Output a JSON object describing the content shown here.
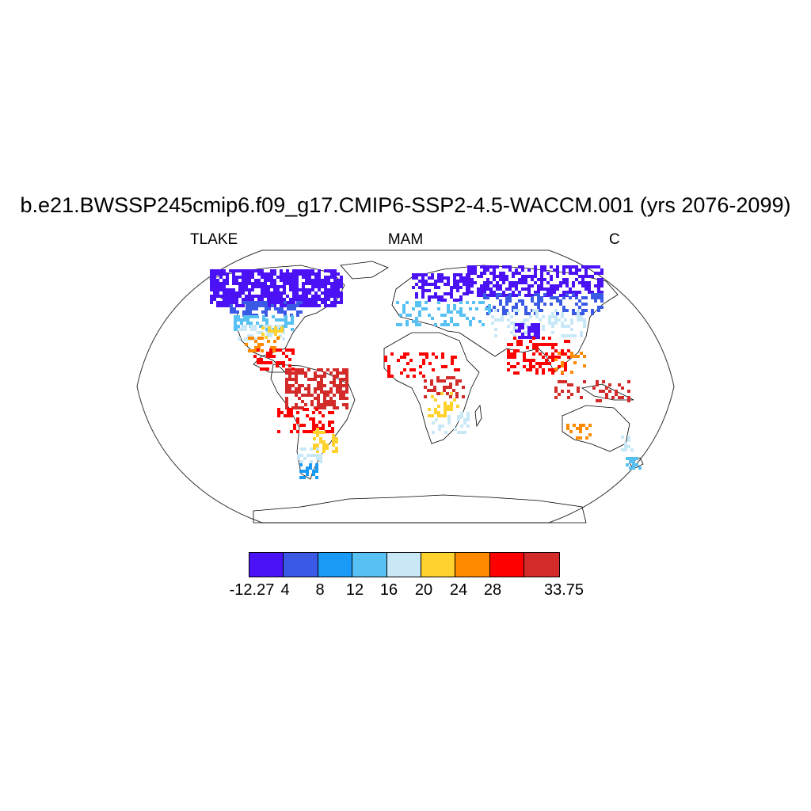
{
  "header": {
    "title": "b.e21.BWSSP245cmip6.f09_g17.CMIP6-SSP2-4.5-WACCM.001 (yrs 2076-2099)",
    "left_label": "TLAKE",
    "center_label": "MAM",
    "right_label": "C"
  },
  "map": {
    "projection": "robinson",
    "field": "lake temperature, March-May mean"
  },
  "colorbar": {
    "colors": [
      "#4a12f5",
      "#3a5ae6",
      "#1a9af7",
      "#56c1f2",
      "#c8e8f8",
      "#ffd22e",
      "#ff8a00",
      "#ff0000",
      "#d32a2a"
    ],
    "tick_labels": [
      "-12.27",
      "4",
      "8",
      "12",
      "16",
      "20",
      "24",
      "28",
      "33.75"
    ]
  }
}
